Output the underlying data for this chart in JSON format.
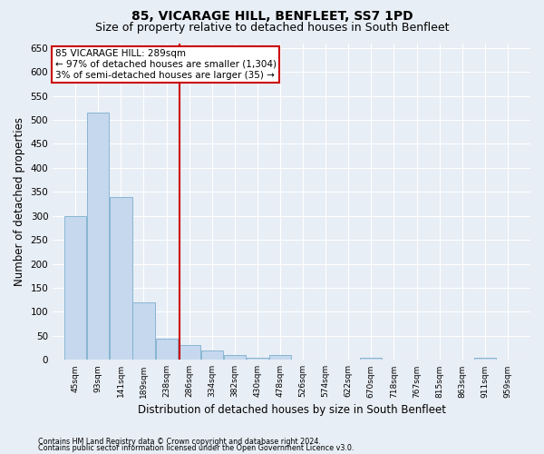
{
  "title": "85, VICARAGE HILL, BENFLEET, SS7 1PD",
  "subtitle": "Size of property relative to detached houses in South Benfleet",
  "xlabel": "Distribution of detached houses by size in South Benfleet",
  "ylabel": "Number of detached properties",
  "footer_line1": "Contains HM Land Registry data © Crown copyright and database right 2024.",
  "footer_line2": "Contains public sector information licensed under the Open Government Licence v3.0.",
  "bar_edges": [
    45,
    93,
    141,
    189,
    238,
    286,
    334,
    382,
    430,
    478,
    526,
    574,
    622,
    670,
    718,
    767,
    815,
    863,
    911,
    959,
    1007
  ],
  "bar_heights": [
    300,
    515,
    340,
    120,
    45,
    30,
    20,
    10,
    5,
    10,
    0,
    0,
    0,
    5,
    0,
    0,
    0,
    0,
    5,
    0
  ],
  "bar_color": "#c5d8ee",
  "bar_edgecolor": "#7aaecc",
  "vline_x": 289,
  "vline_color": "#cc0000",
  "annotation_text": "85 VICARAGE HILL: 289sqm\n← 97% of detached houses are smaller (1,304)\n3% of semi-detached houses are larger (35) →",
  "annotation_box_color": "#cc0000",
  "ylim": [
    0,
    660
  ],
  "yticks": [
    0,
    50,
    100,
    150,
    200,
    250,
    300,
    350,
    400,
    450,
    500,
    550,
    600,
    650
  ],
  "bg_color": "#e8eef5",
  "plot_bg_color": "#e8eef5",
  "grid_color": "#ffffff",
  "title_fontsize": 10,
  "subtitle_fontsize": 9,
  "xlabel_fontsize": 8.5,
  "ylabel_fontsize": 8.5
}
